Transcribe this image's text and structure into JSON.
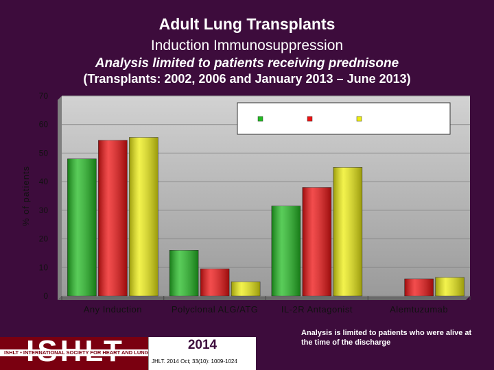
{
  "header": {
    "title": "Adult Lung Transplants",
    "subtitle": "Induction Immunosuppression",
    "analysis": "Analysis limited to patients receiving prednisone",
    "period": "(Transplants: 2002, 2006 and January 2013 – June 2013)"
  },
  "chart_data": {
    "type": "bar",
    "categories": [
      "Any Induction",
      "Polyclonal ALG/ATG",
      "IL-2R Antagonist",
      "Alemtuzumab"
    ],
    "series": [
      {
        "name": "",
        "color": "#22bb22",
        "values": [
          48,
          16,
          31.5,
          0
        ]
      },
      {
        "name": "",
        "color": "#ee1111",
        "values": [
          54.5,
          9.5,
          38,
          6
        ]
      },
      {
        "name": "",
        "color": "#eeee11",
        "values": [
          55.5,
          5,
          45,
          6.5
        ]
      }
    ],
    "ylabel": "% of patients",
    "xlabel": "",
    "ylim": [
      0,
      70
    ],
    "yticks": [
      0,
      10,
      20,
      30,
      40,
      50,
      60,
      70
    ],
    "grid": true,
    "legend_position": "top-right",
    "plot_background": "#c0c0c0"
  },
  "footer": {
    "logo_text": "ISHLT",
    "logo_tagline": "ISHLT • INTERNATIONAL SOCIETY FOR HEART AND LUNG TRANSPLANTATION",
    "year": "2014",
    "citation": "JHLT. 2014 Oct; 33(10): 1009-1024",
    "note": "Analysis is limited to patients who were alive at the time of the discharge"
  }
}
